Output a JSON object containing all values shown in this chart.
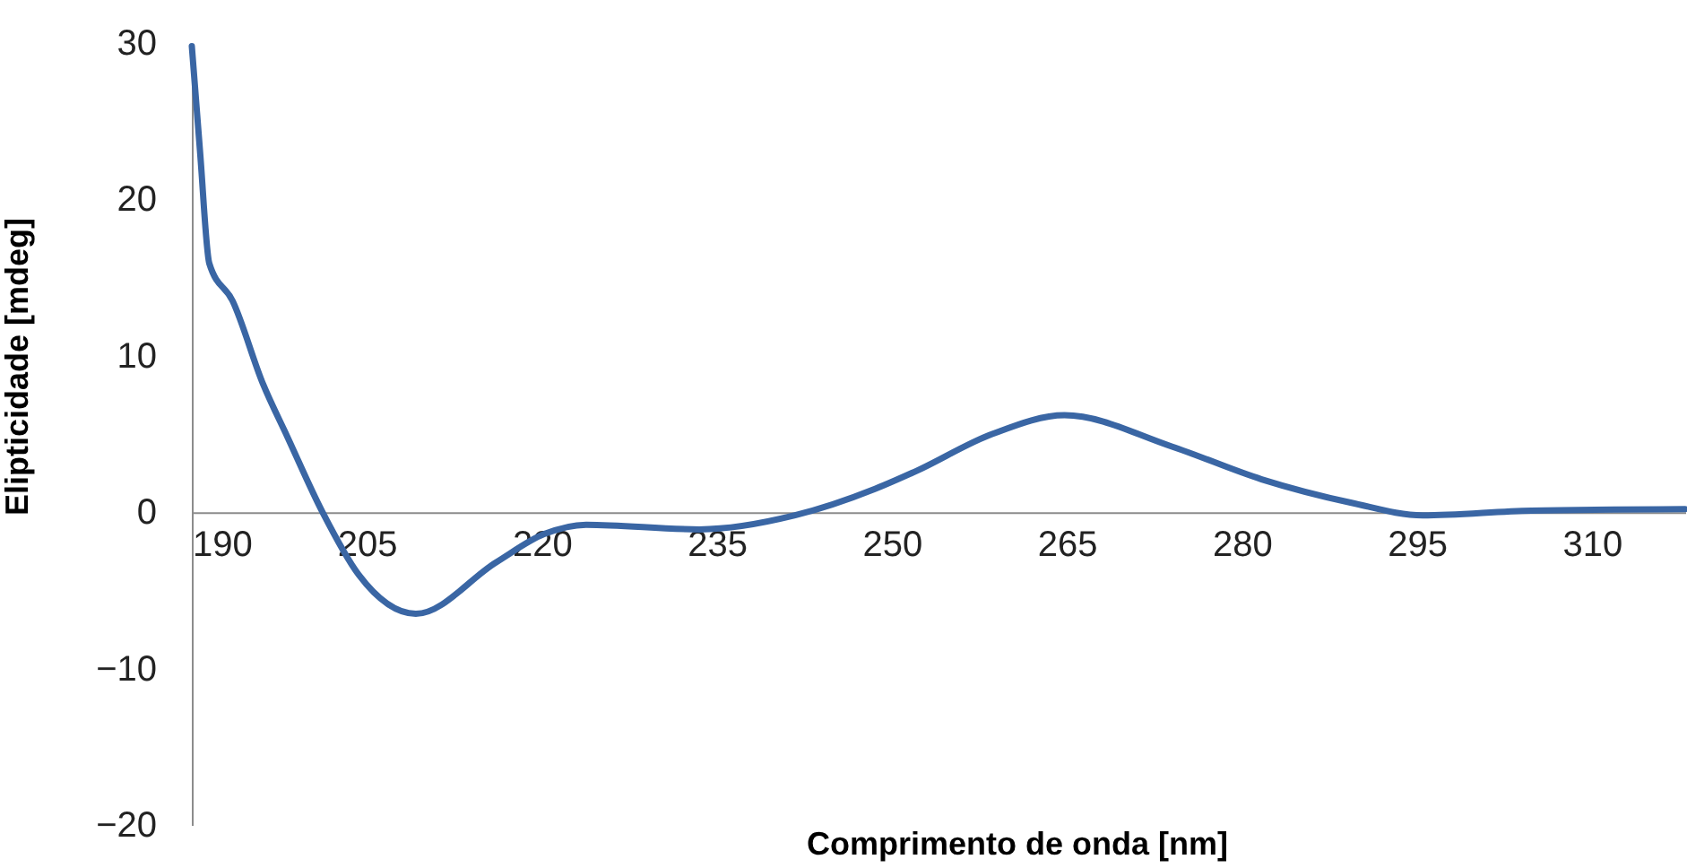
{
  "chart_data": {
    "type": "line",
    "xlabel": "Comprimento de onda [nm]",
    "ylabel": "Elipticidade [mdeg]",
    "x": [
      190,
      190.7,
      191.5,
      193.5,
      196.1,
      198.2,
      201.2,
      204.3,
      209.2,
      216.1,
      220.2,
      223.8,
      233.5,
      241.7,
      248.6,
      252,
      258.6,
      264.8,
      274,
      281.7,
      289.4,
      295.5,
      304.8,
      318
    ],
    "series": [
      {
        "color": "#3a66a4",
        "values": [
          29.8,
          23.1,
          15.9,
          13.5,
          8.2,
          4.8,
          0,
          -4,
          -6.5,
          -3.2,
          -1.4,
          -0.8,
          -1.1,
          -0.2,
          1.5,
          2.6,
          5,
          6.2,
          4.2,
          2.1,
          0.6,
          -0.2,
          0.1,
          0.2
        ]
      }
    ],
    "xlim": [
      190,
      318
    ],
    "xticks": [
      190,
      205,
      220,
      235,
      250,
      265,
      280,
      295,
      310
    ],
    "ylim": [
      -20,
      30
    ],
    "yticks": [
      -20,
      -10,
      0,
      10,
      20,
      30
    ],
    "grid": false,
    "marker": "none",
    "line_style": "solid"
  }
}
